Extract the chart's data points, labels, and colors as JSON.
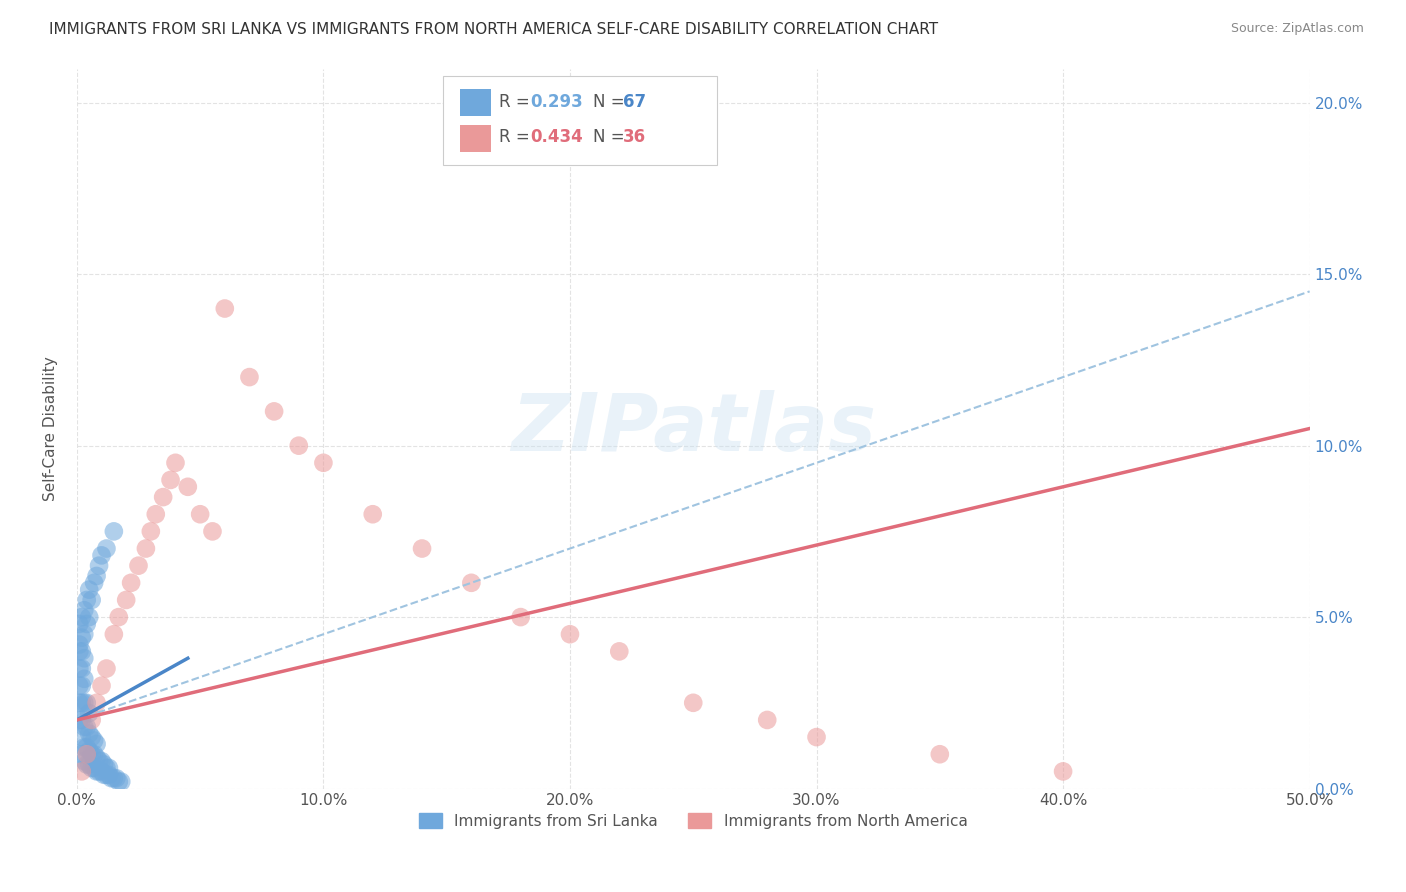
{
  "title": "IMMIGRANTS FROM SRI LANKA VS IMMIGRANTS FROM NORTH AMERICA SELF-CARE DISABILITY CORRELATION CHART",
  "source": "Source: ZipAtlas.com",
  "ylabel": "Self-Care Disability",
  "xlim": [
    0,
    0.5
  ],
  "ylim": [
    0,
    0.21
  ],
  "xticks": [
    0.0,
    0.1,
    0.2,
    0.3,
    0.4,
    0.5
  ],
  "yticks": [
    0.0,
    0.05,
    0.1,
    0.15,
    0.2
  ],
  "series1_label": "Immigrants from Sri Lanka",
  "series1_color": "#6fa8dc",
  "series1_R": "0.293",
  "series1_N": "67",
  "series2_label": "Immigrants from North America",
  "series2_color": "#ea9999",
  "series2_R": "0.434",
  "series2_N": "36",
  "trendline1_color": "#4a86c8",
  "trendline2_color": "#e06c7a",
  "trendline_dashed_color": "#a0c4e0",
  "background_color": "#ffffff",
  "grid_color": "#e0e0e0",
  "watermark": "ZIPatlas",
  "sri_x": [
    0.001,
    0.001,
    0.001,
    0.001,
    0.001,
    0.002,
    0.002,
    0.002,
    0.002,
    0.002,
    0.002,
    0.002,
    0.003,
    0.003,
    0.003,
    0.003,
    0.003,
    0.003,
    0.004,
    0.004,
    0.004,
    0.004,
    0.005,
    0.005,
    0.005,
    0.005,
    0.006,
    0.006,
    0.006,
    0.007,
    0.007,
    0.007,
    0.008,
    0.008,
    0.008,
    0.009,
    0.009,
    0.01,
    0.01,
    0.011,
    0.011,
    0.012,
    0.012,
    0.013,
    0.013,
    0.014,
    0.015,
    0.016,
    0.017,
    0.018,
    0.001,
    0.001,
    0.002,
    0.002,
    0.003,
    0.003,
    0.004,
    0.004,
    0.005,
    0.005,
    0.006,
    0.007,
    0.008,
    0.009,
    0.01,
    0.012,
    0.015
  ],
  "sri_y": [
    0.02,
    0.025,
    0.03,
    0.035,
    0.04,
    0.01,
    0.015,
    0.02,
    0.025,
    0.03,
    0.035,
    0.04,
    0.008,
    0.012,
    0.018,
    0.025,
    0.032,
    0.038,
    0.007,
    0.012,
    0.018,
    0.025,
    0.007,
    0.011,
    0.016,
    0.022,
    0.006,
    0.01,
    0.015,
    0.006,
    0.01,
    0.014,
    0.005,
    0.009,
    0.013,
    0.005,
    0.008,
    0.005,
    0.008,
    0.004,
    0.007,
    0.004,
    0.006,
    0.004,
    0.006,
    0.003,
    0.003,
    0.003,
    0.002,
    0.002,
    0.042,
    0.048,
    0.044,
    0.05,
    0.045,
    0.052,
    0.048,
    0.055,
    0.05,
    0.058,
    0.055,
    0.06,
    0.062,
    0.065,
    0.068,
    0.07,
    0.075
  ],
  "na_x": [
    0.002,
    0.004,
    0.006,
    0.008,
    0.01,
    0.012,
    0.015,
    0.017,
    0.02,
    0.022,
    0.025,
    0.028,
    0.03,
    0.032,
    0.035,
    0.038,
    0.04,
    0.045,
    0.05,
    0.055,
    0.06,
    0.07,
    0.08,
    0.09,
    0.1,
    0.12,
    0.14,
    0.16,
    0.18,
    0.2,
    0.22,
    0.25,
    0.28,
    0.3,
    0.35,
    0.4
  ],
  "na_y": [
    0.005,
    0.01,
    0.02,
    0.025,
    0.03,
    0.035,
    0.045,
    0.05,
    0.055,
    0.06,
    0.065,
    0.07,
    0.075,
    0.08,
    0.085,
    0.09,
    0.095,
    0.088,
    0.08,
    0.075,
    0.14,
    0.12,
    0.11,
    0.1,
    0.095,
    0.08,
    0.07,
    0.06,
    0.05,
    0.045,
    0.04,
    0.025,
    0.02,
    0.015,
    0.01,
    0.005
  ],
  "sri_trend_x0": 0.0,
  "sri_trend_y0": 0.02,
  "sri_trend_x1": 0.045,
  "sri_trend_y1": 0.038,
  "na_trend_x0": 0.0,
  "na_trend_y0": 0.02,
  "na_trend_x1": 0.5,
  "na_trend_y1": 0.105,
  "dash_trend_x0": 0.0,
  "dash_trend_y0": 0.02,
  "dash_trend_x1": 0.5,
  "dash_trend_y1": 0.145
}
